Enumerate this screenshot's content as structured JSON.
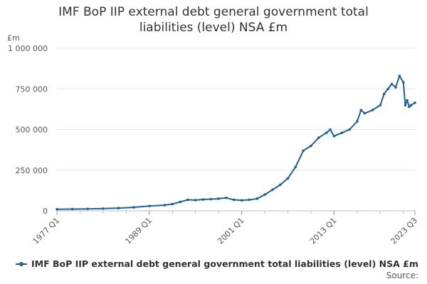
{
  "chart_data": {
    "type": "line",
    "title": "IMF BoP IIP external debt general government total liabilities (level) NSA £m",
    "ylabel": "£m",
    "xlabel": "",
    "ylim": [
      0,
      1000000
    ],
    "yticks": [
      0,
      250000,
      500000,
      750000,
      1000000
    ],
    "ytick_labels": [
      "0",
      "250 000",
      "500 000",
      "750 000",
      "1 000 000"
    ],
    "xticks": [
      "1977 Q1",
      "1989 Q1",
      "2001 Q1",
      "2013 Q1",
      "2023 Q3"
    ],
    "grid": "horizontal",
    "legend_position": "bottom-left",
    "series": [
      {
        "name": "IMF BoP IIP external debt general government total liabilities (level) NSA £m",
        "color": "#206095",
        "points": [
          [
            "1977 Q1",
            10000
          ],
          [
            "1979 Q1",
            11000
          ],
          [
            "1981 Q1",
            12000
          ],
          [
            "1983 Q1",
            14000
          ],
          [
            "1985 Q1",
            17000
          ],
          [
            "1987 Q1",
            22000
          ],
          [
            "1989 Q1",
            30000
          ],
          [
            "1991 Q1",
            35000
          ],
          [
            "1992 Q1",
            42000
          ],
          [
            "1993 Q1",
            55000
          ],
          [
            "1994 Q1",
            68000
          ],
          [
            "1995 Q1",
            66000
          ],
          [
            "1996 Q1",
            70000
          ],
          [
            "1997 Q1",
            72000
          ],
          [
            "1998 Q1",
            75000
          ],
          [
            "1999 Q1",
            80000
          ],
          [
            "2000 Q1",
            68000
          ],
          [
            "2001 Q1",
            65000
          ],
          [
            "2002 Q1",
            68000
          ],
          [
            "2003 Q1",
            75000
          ],
          [
            "2004 Q1",
            100000
          ],
          [
            "2005 Q1",
            130000
          ],
          [
            "2006 Q1",
            160000
          ],
          [
            "2007 Q1",
            200000
          ],
          [
            "2008 Q1",
            270000
          ],
          [
            "2009 Q1",
            370000
          ],
          [
            "2010 Q1",
            400000
          ],
          [
            "2011 Q1",
            450000
          ],
          [
            "2012 Q1",
            480000
          ],
          [
            "2012 Q3",
            500000
          ],
          [
            "2013 Q1",
            460000
          ],
          [
            "2014 Q1",
            480000
          ],
          [
            "2015 Q1",
            500000
          ],
          [
            "2016 Q1",
            550000
          ],
          [
            "2016 Q3",
            620000
          ],
          [
            "2017 Q1",
            600000
          ],
          [
            "2018 Q1",
            620000
          ],
          [
            "2019 Q1",
            650000
          ],
          [
            "2019 Q3",
            720000
          ],
          [
            "2020 Q1",
            750000
          ],
          [
            "2020 Q3",
            780000
          ],
          [
            "2021 Q1",
            760000
          ],
          [
            "2021 Q3",
            830000
          ],
          [
            "2022 Q1",
            790000
          ],
          [
            "2022 Q2",
            650000
          ],
          [
            "2022 Q3",
            680000
          ],
          [
            "2022 Q4",
            640000
          ],
          [
            "2023 Q1",
            650000
          ],
          [
            "2023 Q3",
            665000
          ]
        ]
      }
    ]
  },
  "legend": {
    "label": "IMF BoP IIP external debt general government total liabilities (level) NSA £m"
  },
  "source": "Source:"
}
